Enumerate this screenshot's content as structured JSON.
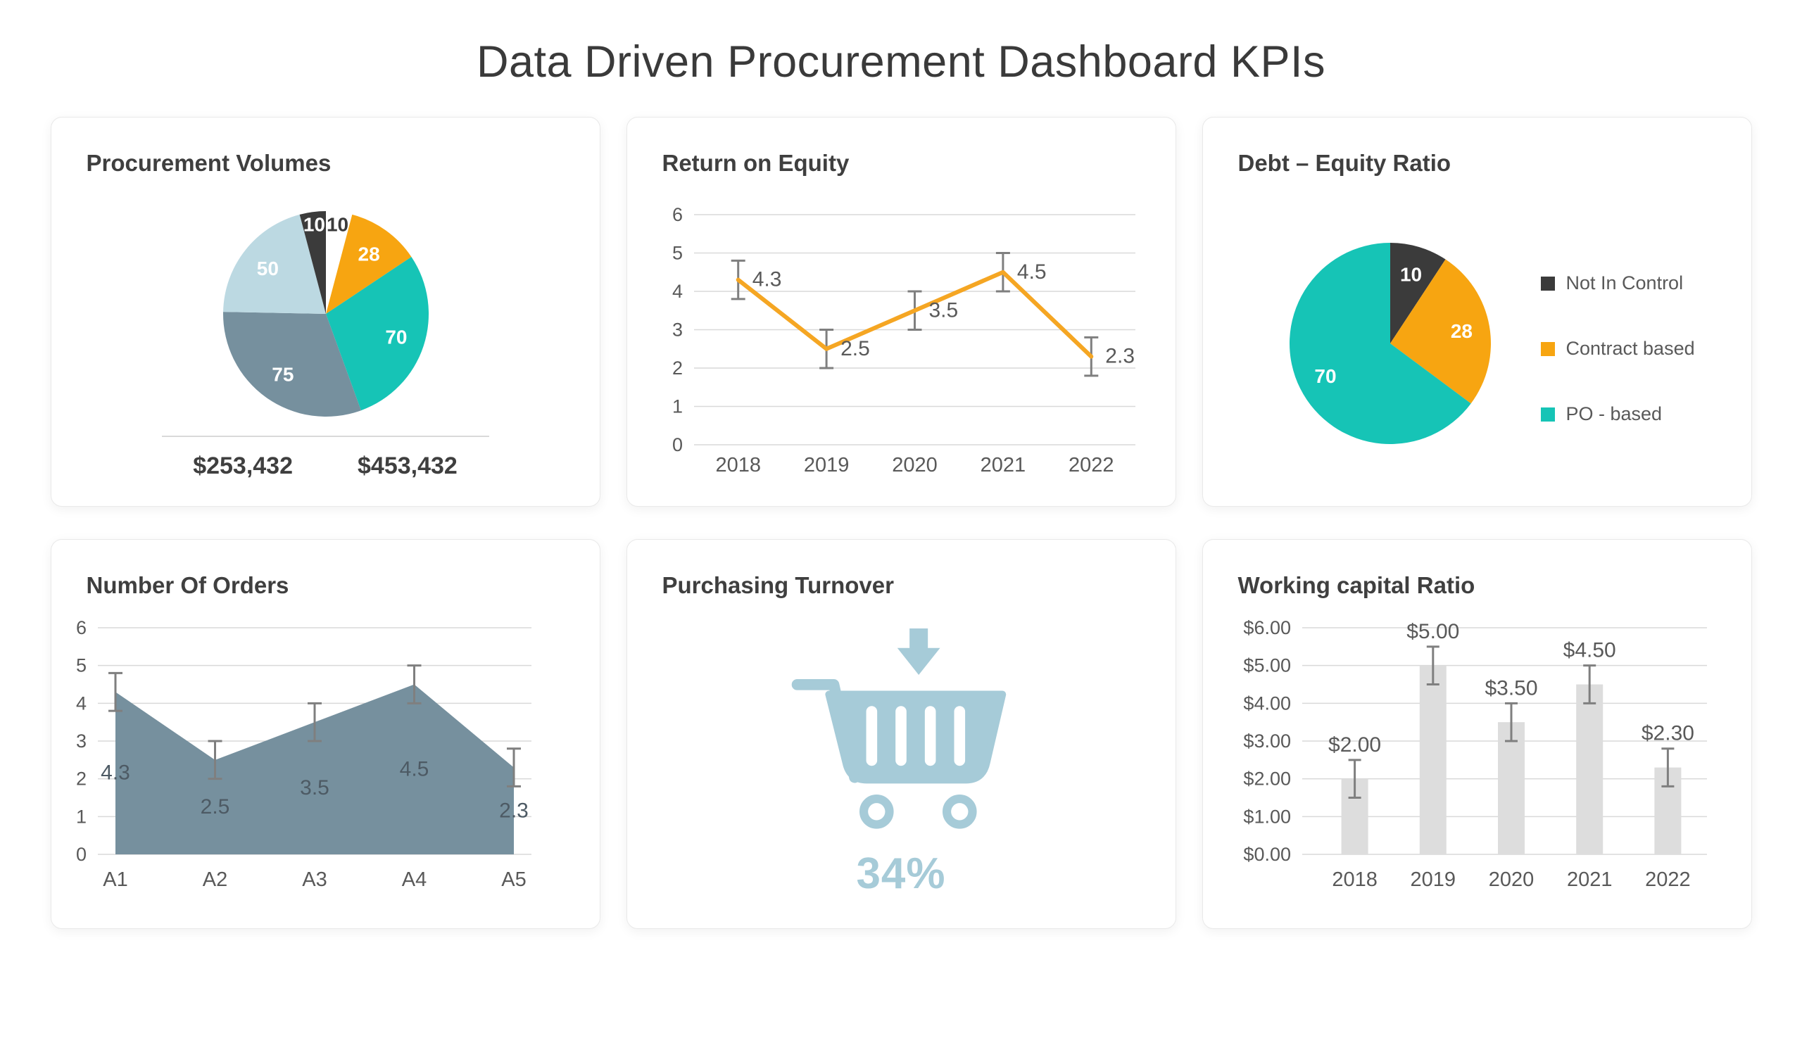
{
  "page": {
    "title": "Data Driven Procurement Dashboard KPIs"
  },
  "colors": {
    "teal": "#16C4B6",
    "orange": "#F7A511",
    "line_orange": "#F5A623",
    "slate": "#76909E",
    "light_blue": "#BCD9E2",
    "dark": "#3B3B3B",
    "cart_blue": "#A6CBD8",
    "bar_gray": "#DDDDDD",
    "axis_text": "#595959",
    "grid_line": "#D9D9D9",
    "error_bar": "#7F7F7F"
  },
  "chart_data": [
    {
      "id": "procurement-volumes",
      "type": "pie",
      "title": "Procurement Volumes",
      "segments": [
        {
          "label": "10",
          "value": 10,
          "color": "#FFFFFF",
          "label_color": "#3B3B3B"
        },
        {
          "label": "28",
          "value": 28,
          "color": "#F7A511",
          "label_color": "#FFFFFF"
        },
        {
          "label": "70",
          "value": 70,
          "color": "#16C4B6",
          "label_color": "#FFFFFF"
        },
        {
          "label": "75",
          "value": 75,
          "color": "#76909E",
          "label_color": "#FFFFFF"
        },
        {
          "label": "50",
          "value": 50,
          "color": "#BCD9E2",
          "label_color": "#FFFFFF"
        },
        {
          "label": "10",
          "value": 10,
          "color": "#3B3B3B",
          "label_color": "#FFFFFF"
        }
      ],
      "footer": {
        "left": "$253,432",
        "right": "$453,432"
      }
    },
    {
      "id": "return-on-equity",
      "type": "line",
      "title": "Return on Equity",
      "categories": [
        "2018",
        "2019",
        "2020",
        "2021",
        "2022"
      ],
      "values": [
        4.3,
        2.5,
        3.5,
        4.5,
        2.3
      ],
      "data_labels": [
        "4.3",
        "2.5",
        "3.5",
        "4.5",
        "2.3"
      ],
      "ylim": [
        0,
        6
      ],
      "yticks": [
        "0",
        "1",
        "2",
        "3",
        "4",
        "5",
        "6"
      ],
      "error_bar": 0.5,
      "line_color": "#F5A623",
      "grid": true,
      "legend_position": "none"
    },
    {
      "id": "debt-equity-ratio",
      "type": "pie",
      "title": "Debt – Equity Ratio",
      "segments": [
        {
          "label": "10",
          "value": 10,
          "color": "#3B3B3B",
          "label_color": "#FFFFFF",
          "legend": "Not In Control"
        },
        {
          "label": "28",
          "value": 28,
          "color": "#F7A511",
          "label_color": "#FFFFFF",
          "legend": "Contract based"
        },
        {
          "label": "70",
          "value": 70,
          "color": "#16C4B6",
          "label_color": "#FFFFFF",
          "legend": "PO - based"
        }
      ],
      "legend_position": "right"
    },
    {
      "id": "number-of-orders",
      "type": "area",
      "title": "Number Of Orders",
      "categories": [
        "A1",
        "A2",
        "A3",
        "A4",
        "A5"
      ],
      "values": [
        4.3,
        2.5,
        3.5,
        4.5,
        2.3
      ],
      "data_labels": [
        "4.3",
        "2.5",
        "3.5",
        "4.5",
        "2.3"
      ],
      "ylim": [
        0,
        6
      ],
      "yticks": [
        "0",
        "1",
        "2",
        "3",
        "4",
        "5",
        "6"
      ],
      "error_bar": 0.5,
      "fill_color": "#76909E",
      "grid": true,
      "legend_position": "none"
    },
    {
      "id": "purchasing-turnover",
      "type": "stat",
      "title": "Purchasing Turnover",
      "value": "34%",
      "icon": "shopping-cart-with-down-arrow"
    },
    {
      "id": "working-capital-ratio",
      "type": "bar",
      "title": "Working capital Ratio",
      "categories": [
        "2018",
        "2019",
        "2020",
        "2021",
        "2022"
      ],
      "values": [
        2.0,
        5.0,
        3.5,
        4.5,
        2.3
      ],
      "data_labels": [
        "$2.00",
        "$5.00",
        "$3.50",
        "$4.50",
        "$2.30"
      ],
      "ylim": [
        0,
        6
      ],
      "yticks": [
        "$0.00",
        "$1.00",
        "$2.00",
        "$3.00",
        "$4.00",
        "$5.00",
        "$6.00"
      ],
      "error_bar": 0.5,
      "bar_color": "#DDDDDD",
      "grid": true,
      "legend_position": "none"
    }
  ]
}
